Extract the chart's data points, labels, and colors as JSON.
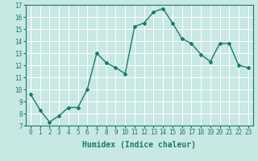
{
  "x": [
    0,
    1,
    2,
    3,
    4,
    5,
    6,
    7,
    8,
    9,
    10,
    11,
    12,
    13,
    14,
    15,
    16,
    17,
    18,
    19,
    20,
    21,
    22,
    23
  ],
  "y": [
    9.6,
    8.3,
    7.3,
    7.8,
    8.5,
    8.5,
    10.0,
    13.0,
    12.2,
    11.8,
    11.3,
    15.2,
    15.5,
    16.4,
    16.7,
    15.5,
    14.2,
    13.8,
    12.9,
    12.3,
    13.8,
    13.8,
    12.0,
    11.8
  ],
  "line_color": "#1a7a6e",
  "marker": "D",
  "marker_size": 2.0,
  "bg_color": "#c8e8e4",
  "grid_color": "#ffffff",
  "xlabel": "Humidex (Indice chaleur)",
  "xlim": [
    -0.5,
    23.5
  ],
  "ylim": [
    7,
    17
  ],
  "yticks": [
    7,
    8,
    9,
    10,
    11,
    12,
    13,
    14,
    15,
    16,
    17
  ],
  "xticks": [
    0,
    1,
    2,
    3,
    4,
    5,
    6,
    7,
    8,
    9,
    10,
    11,
    12,
    13,
    14,
    15,
    16,
    17,
    18,
    19,
    20,
    21,
    22,
    23
  ],
  "tick_label_size": 5.5,
  "xlabel_size": 7.0,
  "line_width": 1.0
}
